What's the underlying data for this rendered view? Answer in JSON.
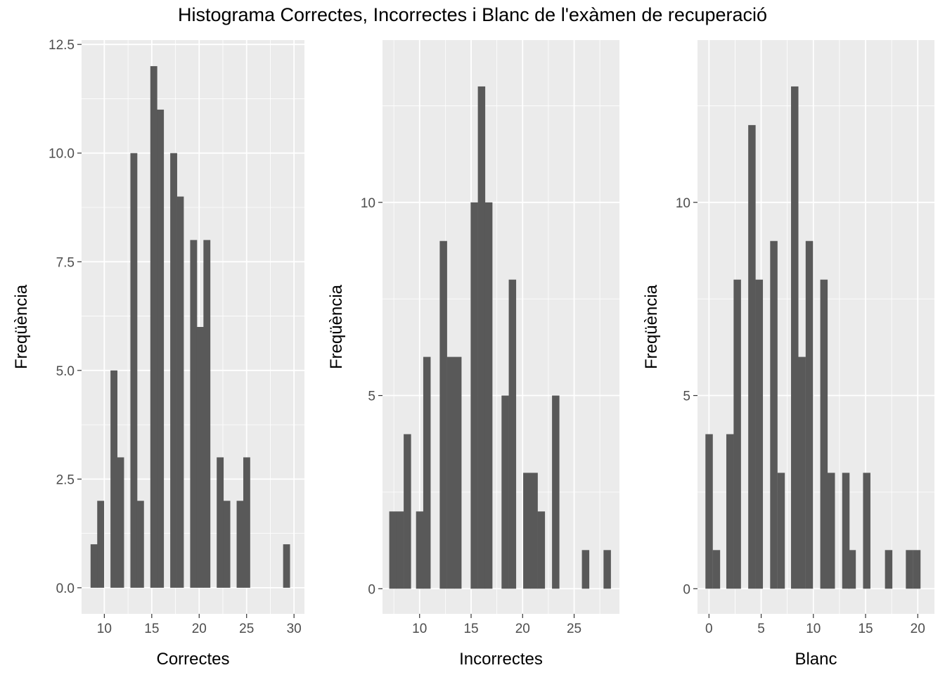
{
  "figure": {
    "title": "Histograma Correctes, Incorrectes i Blanc de l'exàmen de recuperació"
  },
  "colors": {
    "panel_background": "#ebebeb",
    "grid": "#ffffff",
    "bar": "#595959",
    "tick_text": "#4d4d4d"
  },
  "chart_data": [
    {
      "type": "bar",
      "title": "",
      "xlabel": "Correctes",
      "ylabel": "Freqüència",
      "xlim": [
        7.6,
        31.1
      ],
      "ylim": [
        -0.6,
        12.6
      ],
      "bin_width": 0.7,
      "x_ticks": [
        10,
        15,
        20,
        25,
        30
      ],
      "y_ticks": [
        0.0,
        2.5,
        5.0,
        7.5,
        10.0,
        12.5
      ],
      "y_tick_labels": [
        "0.0",
        "2.5",
        "5.0",
        "7.5",
        "10.0",
        "12.5"
      ],
      "bins": [
        {
          "x": 8.9,
          "count": 1
        },
        {
          "x": 9.6,
          "count": 2
        },
        {
          "x": 11.0,
          "count": 5
        },
        {
          "x": 11.7,
          "count": 3
        },
        {
          "x": 13.1,
          "count": 10
        },
        {
          "x": 13.8,
          "count": 2
        },
        {
          "x": 15.2,
          "count": 12
        },
        {
          "x": 15.9,
          "count": 11
        },
        {
          "x": 17.3,
          "count": 10
        },
        {
          "x": 18.0,
          "count": 9
        },
        {
          "x": 19.4,
          "count": 8
        },
        {
          "x": 20.1,
          "count": 6
        },
        {
          "x": 20.8,
          "count": 8
        },
        {
          "x": 22.2,
          "count": 3
        },
        {
          "x": 22.9,
          "count": 2
        },
        {
          "x": 24.3,
          "count": 2
        },
        {
          "x": 25.0,
          "count": 3
        },
        {
          "x": 29.2,
          "count": 1
        }
      ]
    },
    {
      "type": "bar",
      "title": "",
      "xlabel": "Incorrectes",
      "ylabel": "Freqüència",
      "xlim": [
        6.4,
        29.4
      ],
      "ylim": [
        -0.65,
        14.2
      ],
      "bin_width": 0.69,
      "x_ticks": [
        10,
        15,
        20,
        25
      ],
      "y_ticks": [
        0,
        5,
        10
      ],
      "y_tick_labels": [
        "0",
        "5",
        "10"
      ],
      "bins": [
        {
          "x": 7.4,
          "count": 2
        },
        {
          "x": 8.1,
          "count": 2
        },
        {
          "x": 8.8,
          "count": 4
        },
        {
          "x": 10.0,
          "count": 2
        },
        {
          "x": 10.7,
          "count": 6
        },
        {
          "x": 12.3,
          "count": 9
        },
        {
          "x": 13.0,
          "count": 6
        },
        {
          "x": 13.7,
          "count": 6
        },
        {
          "x": 15.3,
          "count": 10
        },
        {
          "x": 16.0,
          "count": 13
        },
        {
          "x": 16.7,
          "count": 10
        },
        {
          "x": 18.3,
          "count": 5
        },
        {
          "x": 19.0,
          "count": 8
        },
        {
          "x": 20.4,
          "count": 3
        },
        {
          "x": 21.1,
          "count": 3
        },
        {
          "x": 21.8,
          "count": 2
        },
        {
          "x": 23.2,
          "count": 5
        },
        {
          "x": 26.1,
          "count": 1
        },
        {
          "x": 28.2,
          "count": 1
        }
      ]
    },
    {
      "type": "bar",
      "title": "",
      "xlabel": "Blanc",
      "ylabel": "Freqüència",
      "xlim": [
        -1.1,
        21.6
      ],
      "ylim": [
        -0.65,
        14.2
      ],
      "bin_width": 0.68,
      "x_ticks": [
        0,
        5,
        10,
        15,
        20
      ],
      "y_ticks": [
        0,
        5,
        10
      ],
      "y_tick_labels": [
        "0",
        "5",
        "10"
      ],
      "bins": [
        {
          "x": 0.0,
          "count": 4
        },
        {
          "x": 0.7,
          "count": 1
        },
        {
          "x": 2.0,
          "count": 4
        },
        {
          "x": 2.7,
          "count": 8
        },
        {
          "x": 4.1,
          "count": 12
        },
        {
          "x": 4.8,
          "count": 8
        },
        {
          "x": 6.2,
          "count": 9
        },
        {
          "x": 6.9,
          "count": 3
        },
        {
          "x": 8.2,
          "count": 13
        },
        {
          "x": 8.9,
          "count": 6
        },
        {
          "x": 9.6,
          "count": 9
        },
        {
          "x": 11.0,
          "count": 8
        },
        {
          "x": 11.7,
          "count": 3
        },
        {
          "x": 13.1,
          "count": 3
        },
        {
          "x": 13.7,
          "count": 1
        },
        {
          "x": 15.1,
          "count": 3
        },
        {
          "x": 17.2,
          "count": 1
        },
        {
          "x": 19.2,
          "count": 1
        },
        {
          "x": 19.9,
          "count": 1
        }
      ]
    }
  ]
}
